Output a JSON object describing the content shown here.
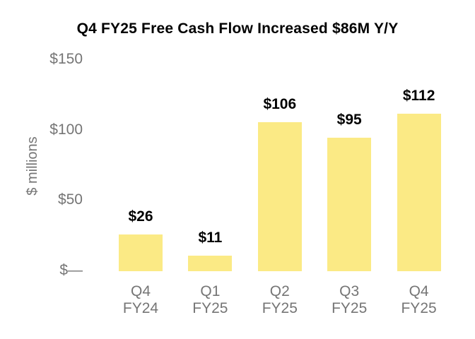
{
  "chart_data": {
    "type": "bar",
    "title": "Q4 FY25 Free Cash Flow Increased $86M Y/Y",
    "xlabel": "",
    "ylabel": "$ millions",
    "categories": [
      "Q4 FY24",
      "Q1 FY25",
      "Q2 FY25",
      "Q3 FY25",
      "Q4 FY25"
    ],
    "values": [
      26,
      11,
      106,
      95,
      112
    ],
    "data_labels": [
      "$26",
      "$11",
      "$106",
      "$95",
      "$112"
    ],
    "yticks": [
      0,
      50,
      100,
      150
    ],
    "ytick_labels": [
      "$—",
      "$50",
      "$100",
      "$150"
    ],
    "ylim": [
      0,
      150
    ],
    "grid": false,
    "legend": false,
    "axis_lines": false,
    "colors": {
      "bar": "#fbea85",
      "axis_text": "#757575",
      "title_text": "#000000",
      "data_label_text": "#000000",
      "background": "#ffffff"
    }
  }
}
